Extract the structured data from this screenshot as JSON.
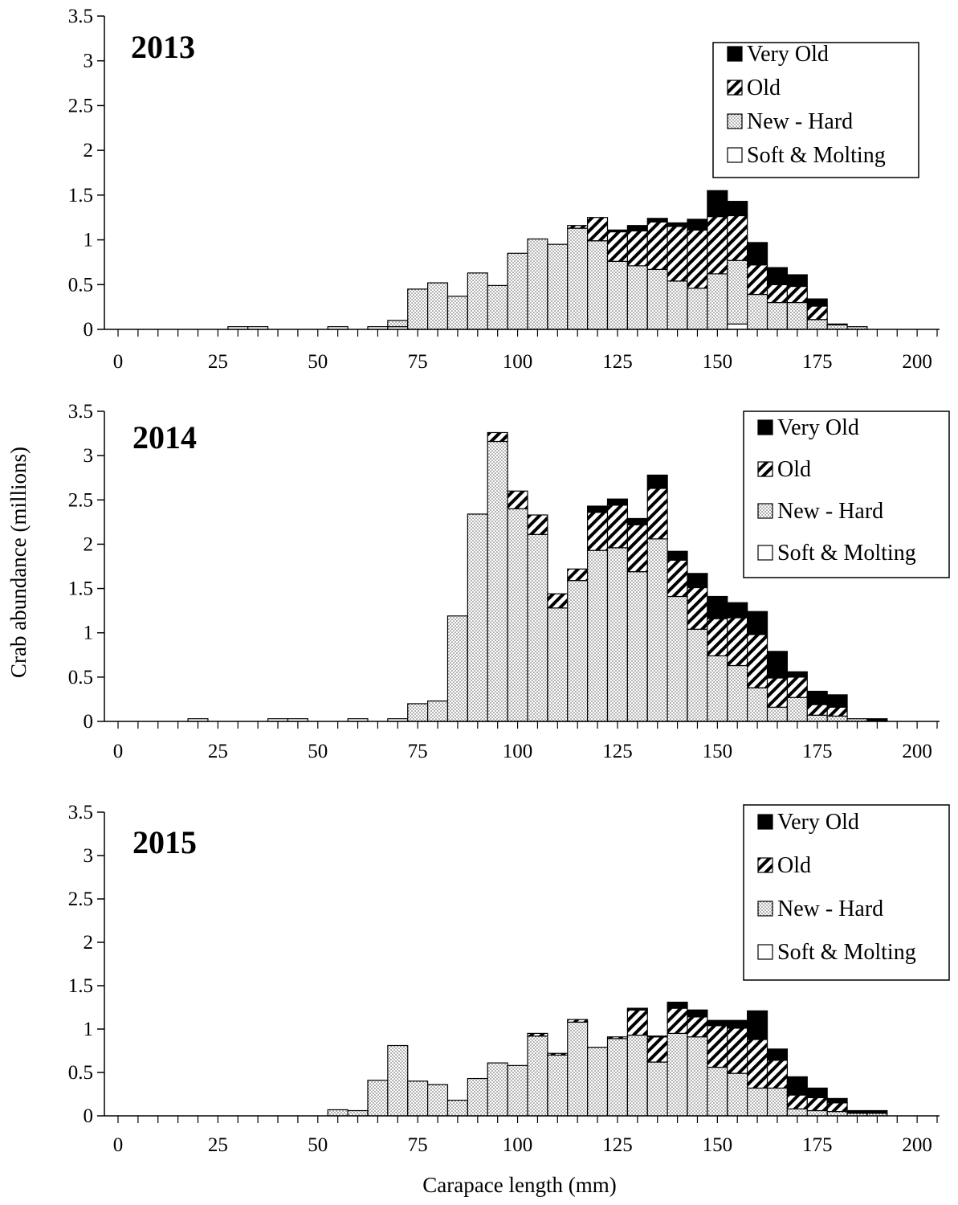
{
  "figure": {
    "ylabel": "Crab abundance (millions)",
    "xlabel": "Carapace length (mm)"
  },
  "colors": {
    "very_old": "#000000",
    "new_hard_dot": "#4d4d4d",
    "background": "#ffffff"
  },
  "chart_data": [
    {
      "type": "bar",
      "stacked": true,
      "title": "2013",
      "ylim": [
        0,
        3.5
      ],
      "xlim": [
        0,
        205
      ],
      "y_ticks": [
        "0",
        "0.5",
        "1",
        "1.5",
        "2",
        "2.5",
        "3",
        "3.5"
      ],
      "x_ticks": [
        "0",
        "25",
        "50",
        "75",
        "100",
        "125",
        "150",
        "175",
        "200"
      ],
      "legend": [
        "Very Old",
        "Old",
        "New - Hard",
        "Soft & Molting"
      ],
      "legend_position": "top-right",
      "bin_width_mm": 5,
      "x": [
        30,
        35,
        55,
        65,
        70,
        75,
        80,
        85,
        90,
        95,
        100,
        105,
        110,
        115,
        120,
        125,
        130,
        135,
        140,
        145,
        150,
        155,
        160,
        165,
        170,
        175,
        180,
        185
      ],
      "series": [
        {
          "name": "Soft & Molting",
          "values": [
            0.03,
            0.03,
            0.03,
            0.03,
            0.03,
            0,
            0,
            0,
            0,
            0,
            0,
            0,
            0,
            0,
            0,
            0,
            0,
            0,
            0,
            0,
            0,
            0.06,
            0,
            0,
            0,
            0,
            0,
            0
          ]
        },
        {
          "name": "New - Hard",
          "values": [
            0,
            0,
            0,
            0,
            0.07,
            0.45,
            0.52,
            0.37,
            0.63,
            0.49,
            0.85,
            1.01,
            0.95,
            1.13,
            0.99,
            0.76,
            0.71,
            0.67,
            0.54,
            0.46,
            0.62,
            0.71,
            0.39,
            0.3,
            0.3,
            0.11,
            0.05,
            0.03
          ]
        },
        {
          "name": "Old",
          "values": [
            0,
            0,
            0,
            0,
            0,
            0,
            0,
            0,
            0,
            0,
            0,
            0,
            0,
            0.03,
            0.26,
            0.33,
            0.39,
            0.53,
            0.61,
            0.65,
            0.64,
            0.5,
            0.33,
            0.2,
            0.18,
            0.15,
            0,
            0
          ]
        },
        {
          "name": "Very Old",
          "values": [
            0,
            0,
            0,
            0,
            0,
            0,
            0,
            0,
            0,
            0,
            0,
            0,
            0,
            0,
            0,
            0.02,
            0.06,
            0.04,
            0.04,
            0.12,
            0.29,
            0.16,
            0.25,
            0.19,
            0.13,
            0.08,
            0.01,
            0
          ]
        }
      ]
    },
    {
      "type": "bar",
      "stacked": true,
      "title": "2014",
      "ylim": [
        0,
        3.5
      ],
      "xlim": [
        0,
        205
      ],
      "y_ticks": [
        "0",
        "0.5",
        "1",
        "1.5",
        "2",
        "2.5",
        "3",
        "3.5"
      ],
      "x_ticks": [
        "0",
        "25",
        "50",
        "75",
        "100",
        "125",
        "150",
        "175",
        "200"
      ],
      "legend": [
        "Very Old",
        "Old",
        "New - Hard",
        "Soft & Molting"
      ],
      "legend_position": "top-right",
      "bin_width_mm": 5,
      "x": [
        20,
        40,
        45,
        60,
        70,
        75,
        80,
        85,
        90,
        95,
        100,
        105,
        110,
        115,
        120,
        125,
        130,
        135,
        140,
        145,
        150,
        155,
        160,
        165,
        170,
        175,
        180,
        185,
        190
      ],
      "series": [
        {
          "name": "Soft & Molting",
          "values": [
            0.03,
            0.03,
            0.03,
            0.03,
            0.03,
            0,
            0,
            0,
            0,
            0,
            0,
            0,
            0,
            0,
            0,
            0,
            0,
            0,
            0,
            0,
            0,
            0,
            0,
            0,
            0,
            0,
            0,
            0,
            0
          ]
        },
        {
          "name": "New - Hard",
          "values": [
            0,
            0,
            0,
            0,
            0,
            0.2,
            0.23,
            1.19,
            2.34,
            3.16,
            2.4,
            2.11,
            1.28,
            1.59,
            1.93,
            1.96,
            1.69,
            2.06,
            1.41,
            1.04,
            0.74,
            0.63,
            0.38,
            0.16,
            0.27,
            0.07,
            0.06,
            0.03,
            0.01
          ]
        },
        {
          "name": "Old",
          "values": [
            0,
            0,
            0,
            0,
            0,
            0,
            0,
            0,
            0,
            0.1,
            0.2,
            0.22,
            0.16,
            0.13,
            0.43,
            0.48,
            0.53,
            0.57,
            0.41,
            0.47,
            0.42,
            0.54,
            0.6,
            0.33,
            0.23,
            0.12,
            0.1,
            0,
            0
          ]
        },
        {
          "name": "Very Old",
          "values": [
            0,
            0,
            0,
            0,
            0,
            0,
            0,
            0,
            0,
            0,
            0,
            0,
            0,
            0,
            0.07,
            0.07,
            0.07,
            0.15,
            0.1,
            0.16,
            0.25,
            0.17,
            0.26,
            0.3,
            0.06,
            0.15,
            0.14,
            0,
            0.02
          ]
        }
      ]
    },
    {
      "type": "bar",
      "stacked": true,
      "title": "2015",
      "ylim": [
        0,
        3.5
      ],
      "xlim": [
        0,
        205
      ],
      "y_ticks": [
        "0",
        "0.5",
        "1",
        "1.5",
        "2",
        "2.5",
        "3",
        "3.5"
      ],
      "x_ticks": [
        "0",
        "25",
        "50",
        "75",
        "100",
        "125",
        "150",
        "175",
        "200"
      ],
      "legend": [
        "Very Old",
        "Old",
        "New - Hard",
        "Soft & Molting"
      ],
      "legend_position": "top-right",
      "bin_width_mm": 5,
      "x": [
        55,
        60,
        65,
        70,
        75,
        80,
        85,
        90,
        95,
        100,
        105,
        110,
        115,
        120,
        125,
        130,
        135,
        140,
        145,
        150,
        155,
        160,
        165,
        170,
        175,
        180,
        185,
        190
      ],
      "series": [
        {
          "name": "Soft & Molting",
          "values": [
            0,
            0,
            0,
            0,
            0,
            0,
            0,
            0,
            0,
            0,
            0,
            0,
            0,
            0,
            0,
            0,
            0,
            0,
            0,
            0,
            0,
            0,
            0,
            0,
            0,
            0,
            0,
            0
          ]
        },
        {
          "name": "New - Hard",
          "values": [
            0.07,
            0.06,
            0.41,
            0.81,
            0.4,
            0.36,
            0.18,
            0.43,
            0.61,
            0.58,
            0.92,
            0.7,
            1.08,
            0.79,
            0.89,
            0.93,
            0.62,
            0.95,
            0.91,
            0.56,
            0.49,
            0.32,
            0.32,
            0.08,
            0.06,
            0.05,
            0.03,
            0.03
          ]
        },
        {
          "name": "Old",
          "values": [
            0,
            0,
            0,
            0,
            0,
            0,
            0,
            0,
            0,
            0,
            0.03,
            0.02,
            0.03,
            0,
            0.02,
            0.29,
            0.29,
            0.29,
            0.23,
            0.48,
            0.52,
            0.56,
            0.32,
            0.16,
            0.15,
            0.1,
            0,
            0
          ]
        },
        {
          "name": "Very Old",
          "values": [
            0,
            0,
            0,
            0,
            0,
            0,
            0,
            0,
            0,
            0,
            0,
            0,
            0,
            0,
            0,
            0.02,
            0.01,
            0.07,
            0.08,
            0.06,
            0.09,
            0.33,
            0.13,
            0.21,
            0.11,
            0.05,
            0.03,
            0.03
          ]
        }
      ]
    }
  ]
}
